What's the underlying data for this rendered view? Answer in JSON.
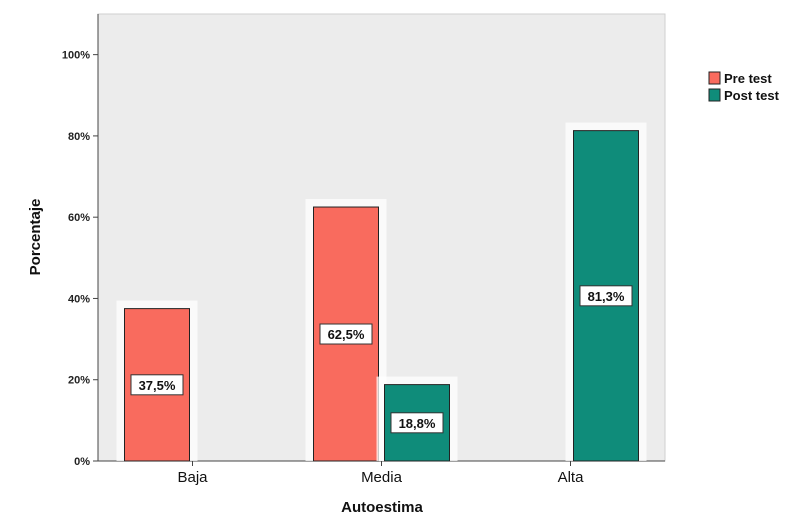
{
  "chart_data": {
    "type": "bar",
    "title": "",
    "xlabel": "Autoestima",
    "ylabel": "Porcentaje",
    "categories": [
      "Baja",
      "Media",
      "Alta"
    ],
    "series": [
      {
        "name": "Pre test",
        "color": "#f96b5e",
        "values": [
          37.5,
          62.5,
          0
        ],
        "labels": [
          "37,5%",
          "62,5%",
          ""
        ]
      },
      {
        "name": "Post test",
        "color": "#0f8c7a",
        "values": [
          0,
          18.8,
          81.3
        ],
        "labels": [
          "",
          "18,8%",
          "81,3%"
        ]
      }
    ],
    "ylim": [
      0,
      110
    ],
    "yticks": [
      0,
      20,
      40,
      60,
      80,
      100
    ],
    "ytick_labels": [
      "0%",
      "20%",
      "40%",
      "60%",
      "80%",
      "100%"
    ],
    "grid": false,
    "legend_position": "right",
    "plot_background": "#ececec"
  }
}
